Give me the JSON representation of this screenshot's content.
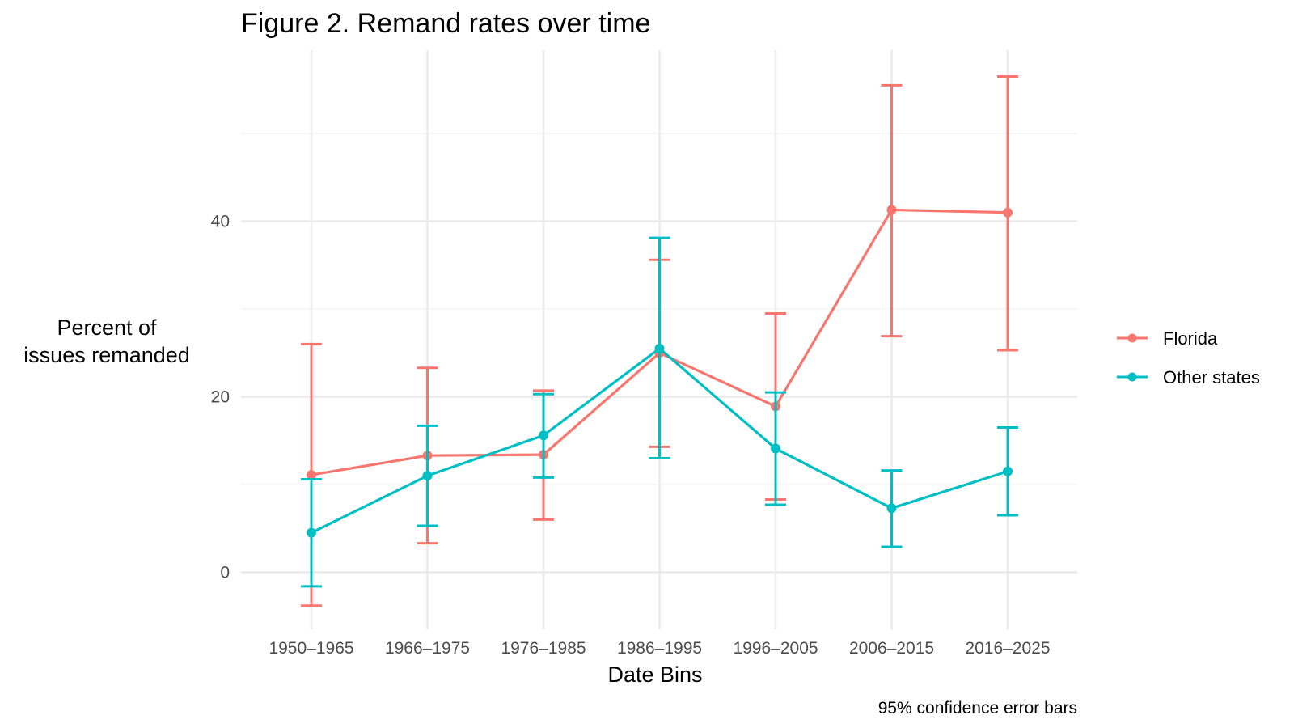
{
  "chart_data": {
    "type": "line",
    "title": "Figure 2. Remand rates over time",
    "xlabel": "Date Bins",
    "ylabel_lines": [
      "Percent of",
      "issues remanded"
    ],
    "caption": "95% confidence error bars",
    "categories": [
      "1950–1965",
      "1966–1975",
      "1976–1985",
      "1986–1995",
      "1996–2005",
      "2006–2015",
      "2016–2025"
    ],
    "y_ticks": [
      0,
      20,
      40
    ],
    "ylim": [
      -6.5,
      59.5
    ],
    "grid": true,
    "legend_position": "right",
    "series": [
      {
        "name": "Florida",
        "color": "#F8766D",
        "values": [
          11.1,
          13.3,
          13.4,
          25.0,
          18.9,
          41.3,
          41.0
        ],
        "lower": [
          -3.8,
          3.3,
          6.0,
          14.3,
          8.3,
          26.9,
          25.3
        ],
        "upper": [
          26.0,
          23.3,
          20.7,
          35.6,
          29.5,
          55.5,
          56.5
        ]
      },
      {
        "name": "Other states",
        "color": "#00BFC4",
        "values": [
          4.5,
          11.0,
          15.6,
          25.5,
          14.1,
          7.3,
          11.5
        ],
        "lower": [
          -1.6,
          5.3,
          10.8,
          13.0,
          7.7,
          2.9,
          6.5
        ],
        "upper": [
          10.6,
          16.7,
          20.3,
          38.1,
          20.5,
          11.6,
          16.5
        ]
      }
    ]
  }
}
